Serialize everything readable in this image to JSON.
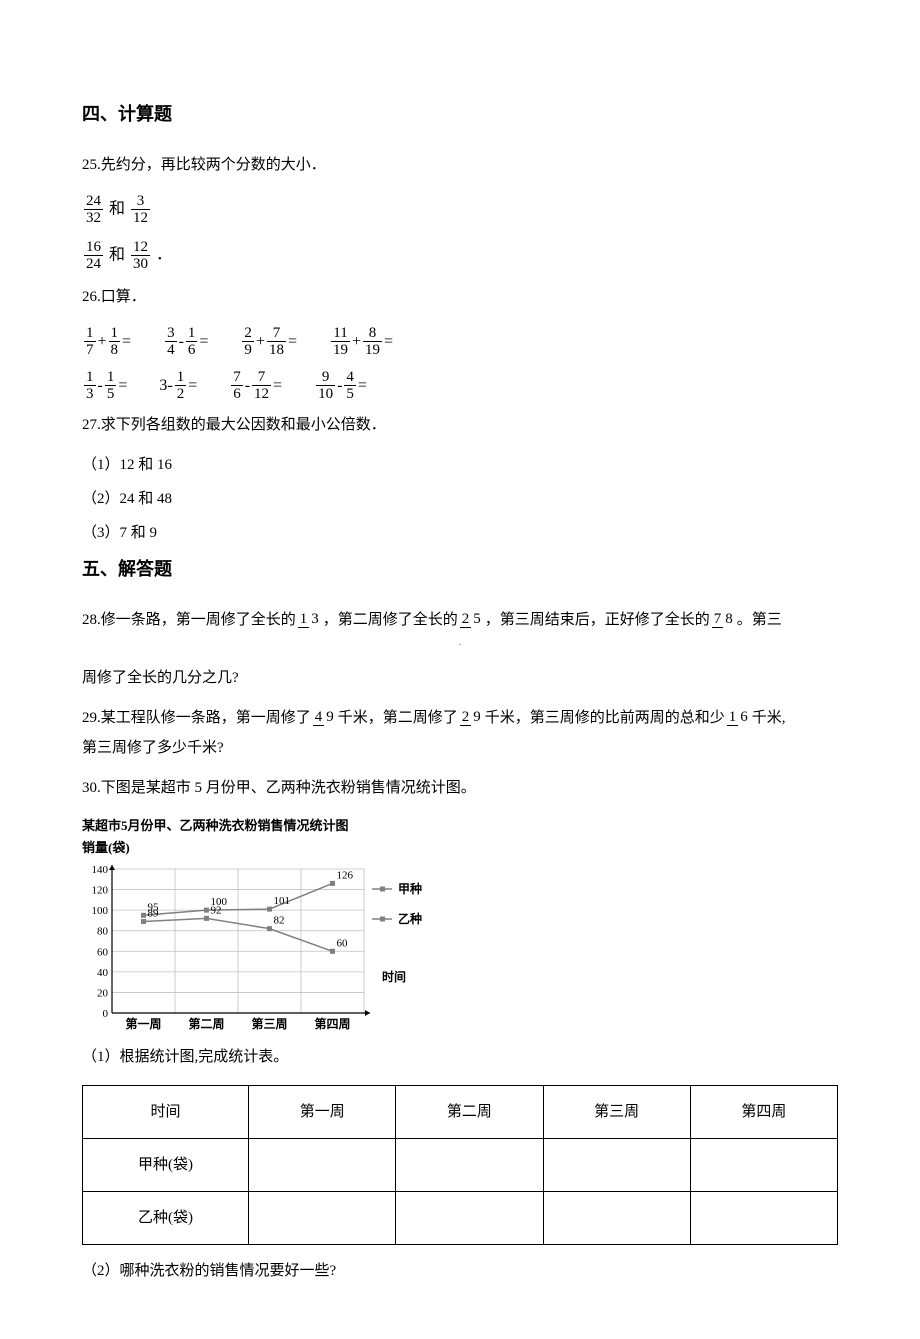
{
  "sections": {
    "s4": "四、计算题",
    "s5": "五、解答题"
  },
  "q25": {
    "text": "25.先约分，再比较两个分数的大小．",
    "pair1a_n": "24",
    "pair1a_d": "32",
    "and1": "和",
    "pair1b_n": "3",
    "pair1b_d": "12",
    "pair2a_n": "16",
    "pair2a_d": "24",
    "and2": "和",
    "pair2b_n": "12",
    "pair2b_d": "30",
    "dot": "．"
  },
  "q26": {
    "text": "26.口算．",
    "r1c1": {
      "a_n": "1",
      "a_d": "7",
      "op": "+",
      "b_n": "1",
      "b_d": "8"
    },
    "r1c2": {
      "a_n": "3",
      "a_d": "4",
      "op": "-",
      "b_n": "1",
      "b_d": "6"
    },
    "r1c3": {
      "a_n": "2",
      "a_d": "9",
      "op": "+",
      "b_n": "7",
      "b_d": "18"
    },
    "r1c4": {
      "a_n": "11",
      "a_d": "19",
      "op": "+",
      "b_n": "8",
      "b_d": "19"
    },
    "r2c1": {
      "a_n": "1",
      "a_d": "3",
      "op": "-",
      "b_n": "1",
      "b_d": "5"
    },
    "r2c2": {
      "a": "3",
      "op": "-",
      "b_n": "1",
      "b_d": "2"
    },
    "r2c3": {
      "a_n": "7",
      "a_d": "6",
      "op": "-",
      "b_n": "7",
      "b_d": "12"
    },
    "r2c4": {
      "a_n": "9",
      "a_d": "10",
      "op": "-",
      "b_n": "4",
      "b_d": "5"
    }
  },
  "q27": {
    "text": "27.求下列各组数的最大公因数和最小公倍数．",
    "a": "（1）12 和 16",
    "b": "（2）24 和 48",
    "c": "（3）7 和 9"
  },
  "q28": {
    "pre": "28.修一条路，第一周修了全长的 ",
    "f1_n": "1",
    "f1_d": "3",
    "mid1": "，第二周修了全长的 ",
    "f2_n": "2",
    "f2_d": "5",
    "mid2": "，第三周结束后，正好修了全长的 ",
    "f3_n": "7",
    "f3_d": "8",
    "post": "。第三",
    "line2": "周修了全长的几分之几?"
  },
  "q29": {
    "pre": "29.某工程队修一条路，第一周修了 ",
    "f1_n": "4",
    "f1_d": "9",
    "mid1": "千米，第二周修了 ",
    "f2_n": "2",
    "f2_d": "9",
    "mid2": "千米，第三周修的比前两周的总和少 ",
    "f3_n": "1",
    "f3_d": "6",
    "post": "千米,",
    "line2": "第三周修了多少千米?"
  },
  "q30": {
    "text": "30.下图是某超市 5 月份甲、乙两种洗衣粉销售情况统计图。",
    "chart": {
      "title": "某超市5月份甲、乙两种洗衣粉销售情况统计图",
      "ylabel": "销量(袋)",
      "xlabel": "时间",
      "categories": [
        "第一周",
        "第二周",
        "第三周",
        "第四周"
      ],
      "series": [
        {
          "name": "甲种",
          "values": [
            95,
            100,
            101,
            126
          ],
          "color": "#808080"
        },
        {
          "name": "乙种",
          "values": [
            89,
            92,
            82,
            60
          ],
          "color": "#808080"
        }
      ],
      "ylim": [
        0,
        140
      ],
      "ytick_step": 20,
      "background": "#ffffff",
      "grid_color": "#c0c0c0",
      "label_fontsize": 11
    },
    "sub1": "（1）根据统计图,完成统计表。",
    "table": {
      "headers": [
        "时间",
        "第一周",
        "第二周",
        "第三周",
        "第四周"
      ],
      "rows": [
        {
          "label": "甲种(袋)",
          "cells": [
            "",
            "",
            "",
            ""
          ]
        },
        {
          "label": "乙种(袋)",
          "cells": [
            "",
            "",
            "",
            ""
          ]
        }
      ]
    },
    "sub2": "（2）哪种洗衣粉的销售情况要好一些?"
  },
  "center_dot": "·"
}
